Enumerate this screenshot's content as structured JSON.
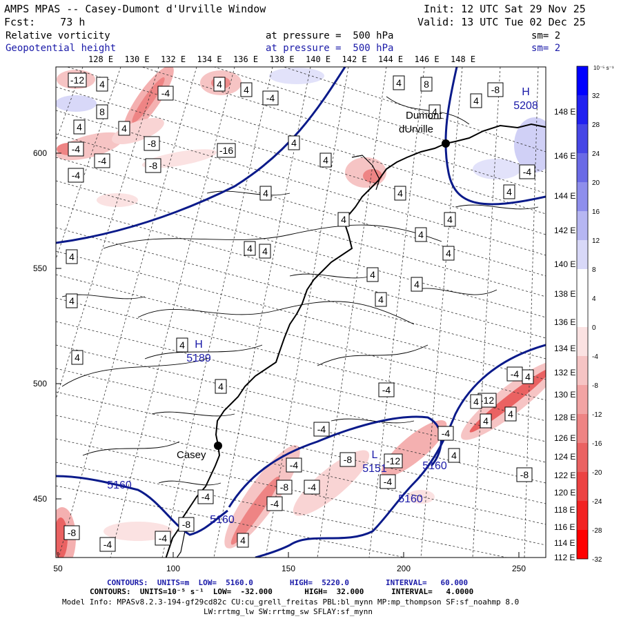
{
  "header": {
    "title": "AMPS MPAS -- Casey-Dumont d'Urville Window",
    "fcst": "Fcst:    73 h",
    "init": "Init: 12 UTC Sat 29 Nov 25",
    "valid": "Valid: 13 UTC Tue 02 Dec 25",
    "field1": {
      "name": "Relative vorticity",
      "level": "at pressure =  500 hPa",
      "sm": "sm= 2"
    },
    "field2": {
      "name": "Geopotential height",
      "level": "at pressure =  500 hPa",
      "sm": "sm= 2"
    }
  },
  "colors": {
    "height_contour": "#0a1a8a",
    "field2_text": "#1a1aa8",
    "coast": "#000000",
    "positive_max": "#0000ff",
    "negative_max": "#ff0000"
  },
  "map": {
    "longitude_labels": [
      "128 E",
      "130 E",
      "132 E",
      "134 E",
      "136 E",
      "138 E",
      "140 E",
      "142 E",
      "144 E",
      "146 E",
      "148 E"
    ],
    "latitude_labels": [
      "148 E",
      "146 E",
      "144 E",
      "142 E",
      "140 E",
      "138 E",
      "136 E",
      "134 E",
      "132 E",
      "130 E",
      "128 E",
      "126 E",
      "124 E",
      "122 E",
      "120 E",
      "118 E",
      "116 E",
      "114 E",
      "112 E"
    ],
    "x_ticks": [
      "50",
      "100",
      "150",
      "200",
      "250"
    ],
    "y_ticks": [
      "600",
      "550",
      "500",
      "450"
    ],
    "stations": [
      {
        "name": "Casey"
      },
      {
        "name": "Dumont",
        "name2": "dUrville"
      }
    ],
    "pressure_centers": [
      {
        "symbol": "H",
        "value": "5189"
      },
      {
        "symbol": "H",
        "value": "5208"
      },
      {
        "symbol": "L",
        "value": "5151"
      }
    ],
    "height_labels": [
      "5160",
      "5160",
      "5160",
      "5160"
    ],
    "vorticity_labels": [
      "-12",
      "4",
      "-4",
      "4",
      "8",
      "4",
      "4",
      "8",
      "-8",
      "4",
      "-4",
      "4",
      "4",
      "-4",
      "-8",
      "-16",
      "-4",
      "4",
      "-8",
      "-4",
      "4",
      "4",
      "-4",
      "4",
      "4",
      "4",
      "4",
      "4",
      "4",
      "4",
      "4",
      "4",
      "4",
      "4",
      "4",
      "4",
      "4",
      "4",
      "4",
      "-4",
      "4",
      "-4",
      "4",
      "-8",
      "-12",
      "-4",
      "-12",
      "-4",
      "-4",
      "-4",
      "-4",
      "-8",
      "-4",
      "4",
      "-8",
      "-4",
      "4",
      "-8",
      "4",
      "-4",
      "4",
      "-4",
      "-8",
      "4"
    ]
  },
  "colorbar": {
    "unit": "10⁻⁵ s⁻¹",
    "levels": [
      "32",
      "28",
      "24",
      "20",
      "16",
      "12",
      "8",
      "4",
      "0",
      "-4",
      "-8",
      "-12",
      "-16",
      "-20",
      "-24",
      "-28",
      "-32"
    ],
    "colors": [
      "#0000ff",
      "#2020f0",
      "#4646e6",
      "#6a6ae6",
      "#8e8eec",
      "#b6b6f2",
      "#d8d8f8",
      "#ffffff",
      "#ffffff",
      "#fbe2e2",
      "#f6c4c4",
      "#f2a4a4",
      "#ee8484",
      "#ea6262",
      "#ec4242",
      "#f22222",
      "#ff0000"
    ]
  },
  "footer": {
    "line1": "CONTOURS:  UNITS=m  LOW=  5160.0        HIGH=  5220.0        INTERVAL=   60.000",
    "line2": "CONTOURS:  UNITS=10⁻⁵ s⁻¹  LOW=  -32.000       HIGH=  32.000      INTERVAL=   4.0000",
    "line3": "Model Info: MPASv8.2.3-194-gf29cd82c CU:cu_grell_freitas PBL:bl_mynn MP:mp_thompson SF:sf_noahmp 8.0",
    "line4": "LW:rrtmg_lw SW:rrtmg_sw SFLAY:sf_mynn"
  }
}
